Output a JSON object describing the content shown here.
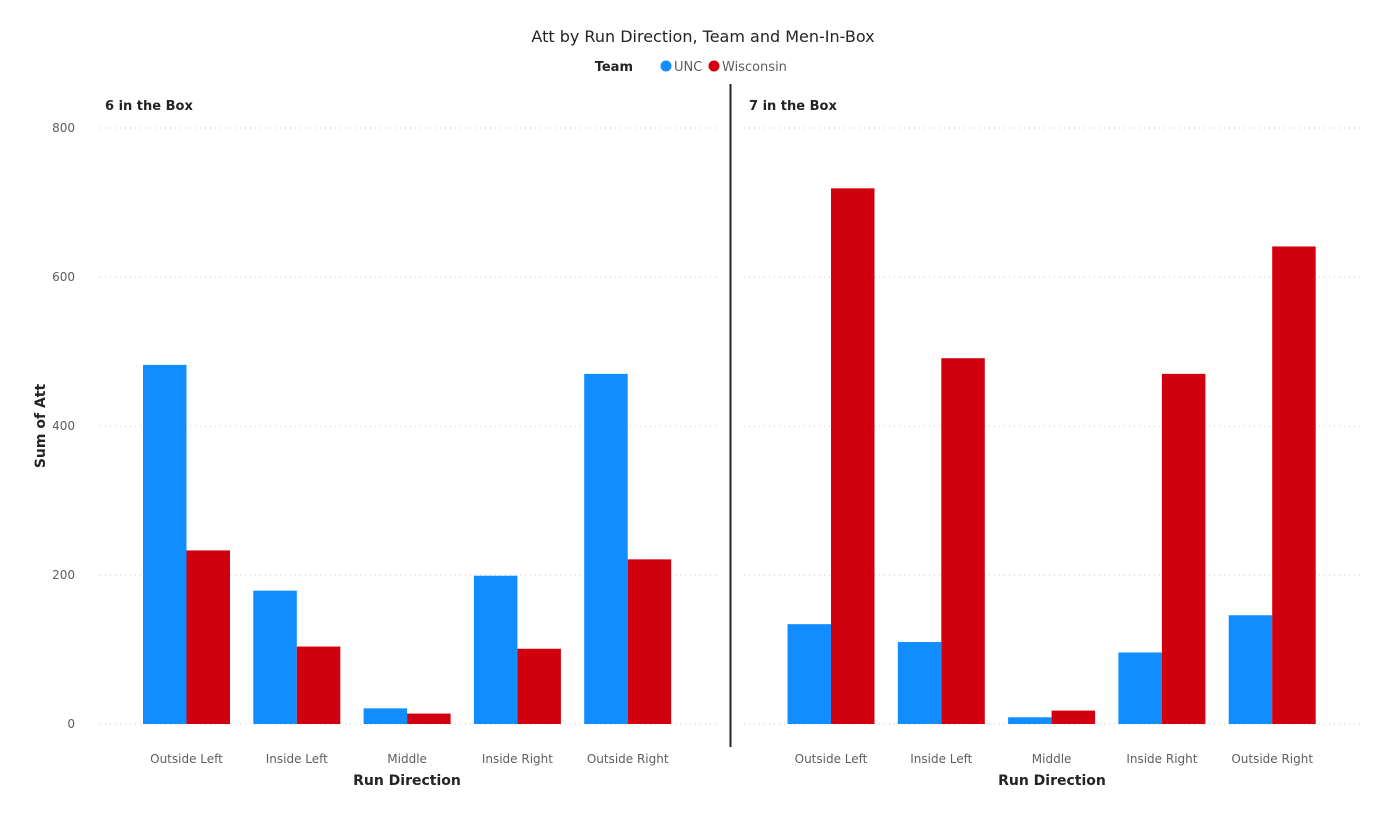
{
  "chart_data": {
    "type": "bar",
    "title": "Att by Run Direction, Team and Men-In-Box",
    "legend": {
      "title": "Team",
      "placement": "top-center",
      "entries": [
        {
          "name": "UNC",
          "color": "#118DFF"
        },
        {
          "name": "Wisconsin",
          "color": "#D2000F"
        }
      ]
    },
    "ylabel": "Sum of Att",
    "xlabel": "Run Direction",
    "ylim": [
      0,
      800
    ],
    "yticks": [
      0,
      200,
      400,
      600,
      800
    ],
    "grid": true,
    "categories": [
      "Outside Left",
      "Inside Left",
      "Middle",
      "Inside Right",
      "Outside Right"
    ],
    "panels": [
      {
        "title": "6 in the Box",
        "series": [
          {
            "name": "UNC",
            "values": [
              482,
              179,
              21,
              199,
              470
            ]
          },
          {
            "name": "Wisconsin",
            "values": [
              233,
              104,
              14,
              101,
              221
            ]
          }
        ]
      },
      {
        "title": "7 in the Box",
        "series": [
          {
            "name": "UNC",
            "values": [
              134,
              110,
              9,
              96,
              146
            ]
          },
          {
            "name": "Wisconsin",
            "values": [
              719,
              491,
              18,
              470,
              641
            ]
          }
        ]
      }
    ]
  }
}
